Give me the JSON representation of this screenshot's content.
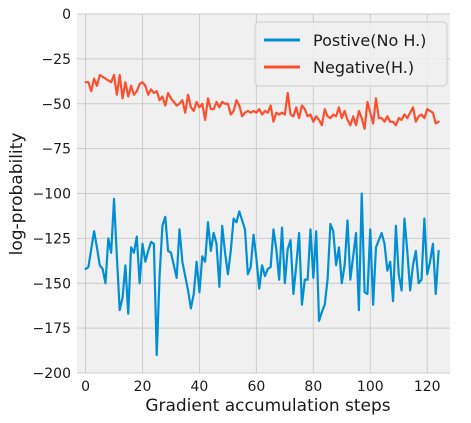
{
  "chart_data": {
    "type": "line",
    "title": "",
    "xlabel": "Gradient accumulation steps",
    "ylabel": "log-probability",
    "xlim": [
      -3,
      128
    ],
    "ylim": [
      -200,
      0
    ],
    "xticks": [
      0,
      20,
      40,
      60,
      80,
      100,
      120
    ],
    "yticks": [
      0,
      -25,
      -50,
      -75,
      -100,
      -125,
      -150,
      -175,
      -200
    ],
    "xtick_labels": [
      "0",
      "20",
      "40",
      "60",
      "80",
      "100",
      "120"
    ],
    "ytick_labels": [
      "0",
      "−25",
      "−50",
      "−75",
      "−100",
      "−125",
      "−150",
      "−175",
      "−200"
    ],
    "grid": true,
    "legend": "top-right",
    "series": [
      {
        "name": "Postive(No H.)",
        "color": "#008fd5",
        "values": [
          -142,
          -141,
          -131,
          -121,
          -130,
          -140,
          -142,
          -150,
          -125,
          -133,
          -103,
          -135,
          -165,
          -158,
          -140,
          -167,
          -130,
          -133,
          -124,
          -150,
          -128,
          -138,
          -132,
          -127,
          -128,
          -190,
          -146,
          -118,
          -113,
          -132,
          -133,
          -140,
          -147,
          -120,
          -138,
          -146,
          -154,
          -164,
          -156,
          -138,
          -155,
          -135,
          -138,
          -116,
          -132,
          -122,
          -128,
          -152,
          -118,
          -133,
          -145,
          -132,
          -114,
          -116,
          -110,
          -115,
          -120,
          -145,
          -141,
          -123,
          -136,
          -153,
          -140,
          -146,
          -142,
          -141,
          -120,
          -131,
          -148,
          -119,
          -150,
          -131,
          -126,
          -156,
          -140,
          -122,
          -162,
          -148,
          -148,
          -120,
          -147,
          -121,
          -171,
          -166,
          -162,
          -148,
          -117,
          -121,
          -140,
          -130,
          -150,
          -140,
          -115,
          -148,
          -135,
          -122,
          -165,
          -100,
          -155,
          -156,
          -120,
          -162,
          -130,
          -126,
          -122,
          -128,
          -143,
          -138,
          -160,
          -118,
          -145,
          -154,
          -114,
          -132,
          -154,
          -140,
          -132,
          -150,
          -148,
          -114,
          -145,
          -138,
          -128,
          -156,
          -132
        ]
      },
      {
        "name": "Negative(H.)",
        "color": "#fc4f30",
        "values": [
          -38,
          -38,
          -43,
          -36,
          -40,
          -34,
          -35,
          -36,
          -37,
          -38,
          -34,
          -45,
          -34,
          -47,
          -38,
          -46,
          -40,
          -45,
          -43,
          -39,
          -38,
          -40,
          -45,
          -42,
          -44,
          -43,
          -48,
          -46,
          -51,
          -44,
          -47,
          -49,
          -51,
          -50,
          -48,
          -55,
          -45,
          -52,
          -54,
          -49,
          -52,
          -50,
          -59,
          -47,
          -53,
          -53,
          -49,
          -52,
          -49,
          -50,
          -50,
          -56,
          -54,
          -48,
          -51,
          -57,
          -55,
          -54,
          -55,
          -54,
          -55,
          -53,
          -56,
          -54,
          -55,
          -51,
          -60,
          -55,
          -56,
          -55,
          -56,
          -44,
          -56,
          -57,
          -52,
          -58,
          -51,
          -53,
          -57,
          -56,
          -60,
          -57,
          -59,
          -62,
          -53,
          -57,
          -58,
          -56,
          -57,
          -52,
          -58,
          -54,
          -59,
          -62,
          -57,
          -62,
          -54,
          -58,
          -64,
          -49,
          -55,
          -61,
          -47,
          -58,
          -58,
          -60,
          -57,
          -60,
          -60,
          -62,
          -58,
          -59,
          -56,
          -58,
          -55,
          -52,
          -60,
          -57,
          -56,
          -58,
          -53,
          -54,
          -55,
          -61,
          -60
        ]
      }
    ]
  }
}
